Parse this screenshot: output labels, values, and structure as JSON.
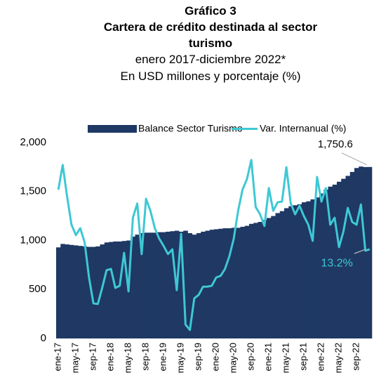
{
  "chart_data": {
    "type": "bar",
    "title": "Gráfico 3",
    "subtitle": "Cartera de crédito destinada al sector turismo",
    "notes": [
      "enero 2017-diciembre 2022*",
      "En USD millones y porcentaje (%)"
    ],
    "categories": [
      "ene-17",
      null,
      null,
      null,
      "may-17",
      null,
      null,
      null,
      "sep-17",
      null,
      null,
      null,
      "ene-18",
      null,
      null,
      null,
      "may-18",
      null,
      null,
      null,
      "sep-18",
      null,
      null,
      null,
      "ene-19",
      null,
      null,
      null,
      "may-19",
      null,
      null,
      null,
      "sep-19",
      null,
      null,
      null,
      "ene-20",
      null,
      null,
      null,
      "may-20",
      null,
      null,
      null,
      "sep-20",
      null,
      null,
      null,
      "ene-21",
      null,
      null,
      null,
      "may-21",
      null,
      null,
      null,
      "sep-21",
      null,
      null,
      null,
      "ene-22",
      null,
      null,
      null,
      "may-22",
      null,
      null,
      null,
      "sep-22",
      null,
      null,
      null
    ],
    "series": [
      {
        "name": "Balance Sector Turismo",
        "type": "bar",
        "color": "#1f3864",
        "values": [
          930,
          965,
          960,
          955,
          950,
          945,
          940,
          935,
          935,
          940,
          960,
          980,
          985,
          990,
          990,
          995,
          1000,
          1040,
          1060,
          1075,
          1080,
          1080,
          1080,
          1085,
          1085,
          1090,
          1095,
          1100,
          1090,
          1100,
          1075,
          1060,
          1075,
          1090,
          1100,
          1110,
          1115,
          1120,
          1125,
          1125,
          1130,
          1130,
          1140,
          1150,
          1170,
          1180,
          1190,
          1210,
          1230,
          1250,
          1280,
          1300,
          1330,
          1350,
          1360,
          1370,
          1390,
          1400,
          1420,
          1440,
          1480,
          1520,
          1550,
          1570,
          1600,
          1630,
          1660,
          1700,
          1740,
          1755,
          1750,
          1750.6
        ],
        "value_labels": [
          null,
          null,
          null,
          null,
          null,
          null,
          null,
          null,
          null,
          null,
          null,
          null,
          null,
          null,
          null,
          null,
          null,
          null,
          null,
          null,
          null,
          null,
          null,
          null,
          null,
          null,
          null,
          null,
          null,
          null,
          null,
          null,
          null,
          null,
          null,
          null,
          null,
          null,
          null,
          null,
          null,
          null,
          null,
          null,
          null,
          null,
          null,
          null,
          null,
          null,
          null,
          null,
          null,
          null,
          null,
          null,
          null,
          null,
          null,
          null,
          null,
          null,
          null,
          null,
          null,
          null,
          null,
          null,
          null,
          null,
          null,
          "1,750.6"
        ]
      },
      {
        "name": "Var. Internanual (%)",
        "type": "line",
        "axis": "y2",
        "color": "#3ec8d4",
        "values": [
          32.1,
          39.9,
          29.9,
          21.0,
          17.7,
          19.9,
          15.4,
          4.3,
          -3.9,
          -4.1,
          1.0,
          6.6,
          7.0,
          1.0,
          1.7,
          12.1,
          -0.1,
          23.2,
          27.7,
          11.7,
          29.2,
          25.4,
          19.9,
          16.6,
          14.3,
          11.7,
          13.2,
          0.3,
          18.1,
          -10.6,
          -12.3,
          -2.3,
          -1.2,
          1.4,
          1.4,
          1.7,
          4.3,
          4.8,
          7.0,
          11.0,
          16.6,
          25.4,
          32.1,
          35.4,
          41.5,
          26.6,
          24.3,
          20.6,
          32.6,
          25.4,
          28.1,
          28.3,
          39.2,
          27.7,
          24.3,
          27.0,
          23.7,
          21.0,
          15.9,
          36.1,
          28.3,
          32.6,
          21.0,
          23.2,
          13.9,
          18.8,
          26.3,
          21.9,
          21.0,
          27.4,
          12.8,
          13.2
        ],
        "value_labels": [
          null,
          null,
          null,
          null,
          null,
          null,
          null,
          null,
          null,
          null,
          null,
          null,
          null,
          null,
          null,
          null,
          null,
          null,
          null,
          null,
          null,
          null,
          null,
          null,
          null,
          null,
          null,
          null,
          null,
          null,
          null,
          null,
          null,
          null,
          null,
          null,
          null,
          null,
          null,
          null,
          null,
          null,
          null,
          null,
          null,
          null,
          null,
          null,
          null,
          null,
          null,
          null,
          null,
          null,
          null,
          null,
          null,
          null,
          null,
          null,
          null,
          null,
          null,
          null,
          null,
          null,
          null,
          null,
          null,
          null,
          null,
          "13.2%"
        ]
      }
    ],
    "ylim": [
      0,
      2000
    ],
    "yticks": [
      0,
      500,
      {
        "value": 1000,
        "label": "1,000"
      },
      {
        "value": 1500,
        "label": "1,500"
      },
      {
        "value": 2000,
        "label": "2,000"
      }
    ],
    "y2lim": [
      -15,
      47
    ],
    "grid": false,
    "legend": "top"
  }
}
